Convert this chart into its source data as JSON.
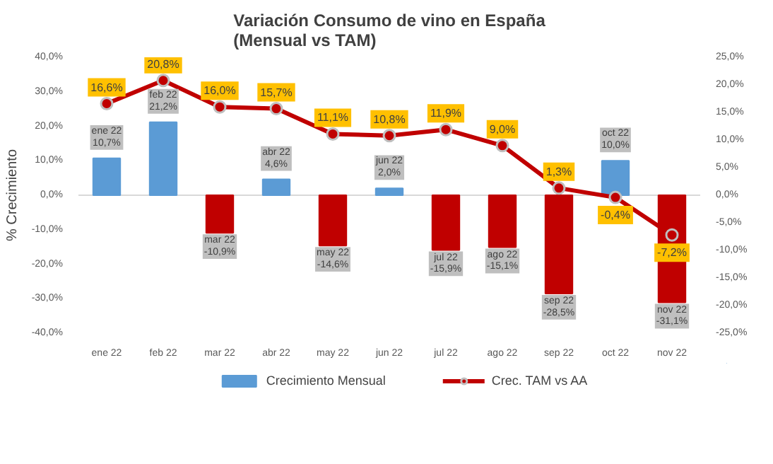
{
  "chart_data": {
    "type": "bar",
    "title": "Variación Consumo de vino en España\n(Mensual vs TAM)",
    "ylabel": "% Crecimiento",
    "categories": [
      "ene 22",
      "feb 22",
      "mar 22",
      "abr 22",
      "may 22",
      "jun 22",
      "jul 22",
      "ago 22",
      "sep 22",
      "oct 22",
      "nov 22"
    ],
    "ylim": [
      -40,
      40
    ],
    "yticks": [
      {
        "value": -40,
        "label": "-40,0%"
      },
      {
        "value": -30,
        "label": "-30,0%"
      },
      {
        "value": -20,
        "label": "-20,0%"
      },
      {
        "value": -10,
        "label": "-10,0%"
      },
      {
        "value": 0,
        "label": "0,0%"
      },
      {
        "value": 10,
        "label": "10,0%"
      },
      {
        "value": 20,
        "label": "20,0%"
      },
      {
        "value": 30,
        "label": "30,0%"
      },
      {
        "value": 40,
        "label": "40,0%"
      }
    ],
    "y2lim": [
      -25,
      25
    ],
    "y2ticks": [
      {
        "value": -25,
        "label": "-25,0%"
      },
      {
        "value": -20,
        "label": "-20,0%"
      },
      {
        "value": -15,
        "label": "-15,0%"
      },
      {
        "value": -10,
        "label": "-10,0%"
      },
      {
        "value": -5,
        "label": "-5,0%"
      },
      {
        "value": 0,
        "label": "0,0%"
      },
      {
        "value": 5,
        "label": "5,0%"
      },
      {
        "value": 10,
        "label": "10,0%"
      },
      {
        "value": 15,
        "label": "15,0%"
      },
      {
        "value": 20,
        "label": "20,0%"
      },
      {
        "value": 25,
        "label": "25,0%"
      }
    ],
    "series": [
      {
        "name": "Crecimiento Mensual",
        "color": "#5b9bd5",
        "colors": [
          "#5b9bd5",
          "#5b9bd5",
          "#c00000",
          "#5b9bd5",
          "#c00000",
          "#5b9bd5",
          "#c00000",
          "#c00000",
          "#c00000",
          "#5b9bd5",
          "#c00000"
        ],
        "values": [
          10.7,
          21.2,
          -10.9,
          4.6,
          -14.6,
          2.0,
          -15.9,
          -15.1,
          -28.5,
          10.0,
          -31.1
        ],
        "value_labels": [
          "ene 22\n10,7%",
          "feb 22\n21,2%",
          "mar 22\n-10,9%",
          "abr 22\n4,6%",
          "may 22\n-14,6%",
          "jun 22\n2,0%",
          "jul 22\n-15,9%",
          "ago 22\n-15,1%",
          "sep 22\n-28,5%",
          "oct 22\n10,0%",
          "nov 22\n-31,1%"
        ]
      },
      {
        "name": "Crec. TAM vs AA",
        "type": "line",
        "axis": "y2",
        "color": "#c00000",
        "marker": "circle",
        "values": [
          16.6,
          20.8,
          16.0,
          15.7,
          11.1,
          10.8,
          11.9,
          9.0,
          1.3,
          -0.4,
          -7.2
        ],
        "value_labels": [
          "16,6%",
          "20,8%",
          "16,0%",
          "15,7%",
          "11,1%",
          "10,8%",
          "11,9%",
          "9,0%",
          "1,3%",
          "-0,4%",
          "-7,2%"
        ]
      }
    ],
    "ref_lines": [
      {
        "axis": "y",
        "value": 0,
        "color": "#d9d9d9"
      }
    ],
    "grid": false,
    "legend": "bottom"
  }
}
